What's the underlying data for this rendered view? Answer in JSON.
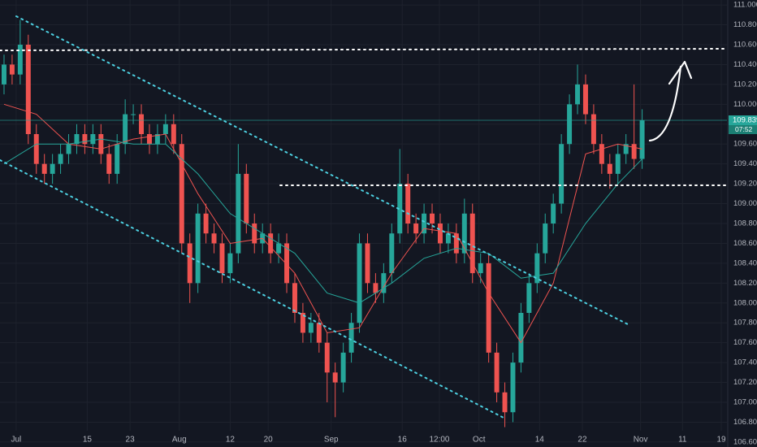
{
  "chart_data": {
    "type": "candlestick",
    "x": [
      0,
      1,
      2,
      3,
      4,
      5,
      6,
      7,
      8,
      9,
      10,
      11,
      12,
      13,
      14,
      15,
      16,
      17,
      18,
      19,
      20,
      21,
      22,
      23,
      24,
      25,
      26,
      27,
      28,
      29,
      30,
      31,
      32,
      33,
      34,
      35,
      36,
      37,
      38,
      39,
      40,
      41,
      42,
      43,
      44,
      45,
      46,
      47,
      48,
      49,
      50,
      51,
      52,
      53,
      54,
      55,
      56,
      57,
      58,
      59,
      60,
      61,
      62,
      63,
      64,
      65,
      66,
      67,
      68,
      69,
      70,
      71,
      72,
      73,
      74,
      75,
      76,
      77,
      78,
      79
    ],
    "open": [
      110.2,
      110.4,
      110.3,
      110.6,
      109.7,
      109.4,
      109.3,
      109.4,
      109.5,
      109.6,
      109.7,
      109.6,
      109.7,
      109.5,
      109.3,
      109.6,
      109.9,
      109.9,
      109.7,
      109.6,
      109.7,
      109.8,
      109.6,
      108.6,
      108.2,
      108.9,
      108.7,
      108.6,
      108.3,
      108.5,
      109.3,
      108.8,
      108.6,
      108.7,
      108.5,
      108.6,
      108.2,
      107.9,
      107.7,
      107.8,
      107.6,
      107.3,
      107.2,
      107.5,
      107.8,
      108.6,
      108.2,
      108.1,
      108.3,
      108.7,
      109.2,
      108.8,
      108.7,
      108.9,
      108.8,
      108.6,
      108.7,
      108.5,
      108.9,
      108.3,
      108.4,
      107.5,
      107.1,
      106.9,
      107.4,
      107.9,
      108.2,
      108.5,
      108.8,
      109.0,
      109.6,
      110.0,
      110.2,
      109.9,
      109.6,
      109.4,
      109.3,
      109.5,
      109.6,
      109.45
    ],
    "high": [
      110.5,
      110.5,
      110.85,
      110.7,
      109.8,
      109.5,
      109.5,
      109.6,
      109.7,
      109.8,
      109.8,
      109.8,
      109.8,
      109.6,
      109.7,
      110.05,
      110.0,
      110.0,
      109.8,
      109.8,
      109.9,
      109.9,
      109.7,
      108.7,
      109.0,
      109.0,
      108.8,
      108.7,
      108.6,
      109.6,
      109.4,
      108.9,
      108.8,
      108.8,
      108.7,
      108.7,
      108.3,
      108.0,
      107.9,
      107.9,
      107.7,
      107.4,
      107.6,
      107.9,
      108.7,
      108.7,
      108.3,
      108.4,
      108.8,
      109.55,
      109.3,
      108.9,
      109.0,
      109.0,
      108.9,
      108.8,
      108.8,
      109.05,
      109.0,
      108.5,
      108.5,
      107.6,
      107.2,
      107.5,
      108.0,
      108.3,
      108.6,
      108.9,
      109.1,
      109.7,
      110.1,
      110.4,
      110.3,
      110.0,
      109.7,
      109.5,
      109.6,
      109.7,
      110.2,
      109.95
    ],
    "low": [
      110.1,
      110.2,
      110.2,
      109.6,
      109.3,
      109.2,
      109.2,
      109.3,
      109.4,
      109.5,
      109.5,
      109.5,
      109.4,
      109.2,
      109.2,
      109.5,
      109.8,
      109.6,
      109.5,
      109.5,
      109.6,
      109.5,
      108.5,
      108.0,
      108.1,
      108.6,
      108.5,
      108.2,
      108.2,
      108.4,
      108.7,
      108.5,
      108.5,
      108.4,
      108.4,
      108.1,
      107.8,
      107.6,
      107.6,
      107.5,
      107.0,
      106.85,
      107.1,
      107.4,
      107.7,
      108.1,
      108.0,
      108.0,
      108.2,
      108.6,
      108.7,
      108.6,
      108.6,
      108.7,
      108.5,
      108.5,
      108.4,
      108.4,
      108.2,
      108.2,
      107.4,
      107.0,
      106.75,
      106.8,
      107.3,
      107.8,
      108.1,
      108.4,
      108.7,
      108.9,
      109.5,
      109.9,
      109.8,
      109.5,
      109.3,
      109.15,
      109.2,
      109.4,
      109.35,
      109.35
    ],
    "close": [
      110.4,
      110.3,
      110.6,
      109.7,
      109.4,
      109.3,
      109.4,
      109.5,
      109.6,
      109.7,
      109.6,
      109.7,
      109.5,
      109.3,
      109.6,
      109.9,
      109.9,
      109.7,
      109.6,
      109.7,
      109.8,
      109.6,
      108.6,
      108.2,
      108.9,
      108.7,
      108.6,
      108.3,
      108.5,
      109.3,
      108.8,
      108.6,
      108.7,
      108.5,
      108.6,
      108.2,
      107.9,
      107.7,
      107.8,
      107.6,
      107.3,
      107.2,
      107.5,
      107.8,
      108.6,
      108.2,
      108.1,
      108.3,
      108.7,
      109.2,
      108.8,
      108.7,
      108.9,
      108.8,
      108.6,
      108.7,
      108.5,
      108.9,
      108.3,
      108.4,
      107.5,
      107.1,
      106.9,
      107.4,
      107.9,
      108.2,
      108.5,
      108.8,
      109.0,
      109.6,
      110.0,
      110.2,
      109.9,
      109.6,
      109.4,
      109.3,
      109.5,
      109.6,
      109.45,
      109.839
    ],
    "up_color": "#26a69a",
    "down_color": "#ef5350",
    "averages": [
      {
        "color": "#ef5350",
        "x": [
          0,
          4,
          8,
          12,
          16,
          20,
          24,
          28,
          32,
          36,
          40,
          44,
          48,
          52,
          56,
          60,
          64,
          68,
          72,
          76,
          79
        ],
        "values": [
          110.0,
          109.9,
          109.6,
          109.55,
          109.65,
          109.7,
          109.1,
          108.6,
          108.65,
          108.3,
          107.7,
          107.75,
          108.3,
          108.75,
          108.7,
          108.1,
          107.6,
          108.2,
          109.5,
          109.6,
          109.55
        ]
      },
      {
        "color": "#26a69a",
        "x": [
          0,
          4,
          8,
          12,
          16,
          20,
          24,
          28,
          32,
          36,
          40,
          44,
          48,
          52,
          56,
          60,
          64,
          68,
          72,
          76,
          79
        ],
        "values": [
          109.4,
          109.6,
          109.6,
          109.65,
          109.6,
          109.6,
          109.3,
          108.9,
          108.7,
          108.5,
          108.1,
          108.0,
          108.2,
          108.45,
          108.55,
          108.5,
          108.25,
          108.3,
          108.8,
          109.2,
          109.45
        ]
      }
    ],
    "last_price": {
      "value": 109.839,
      "label": "109.839"
    },
    "countdown": "07:52",
    "xlim": [
      -0.5,
      89.5
    ],
    "xticks": [
      {
        "value": 1.5,
        "label": "Jul"
      },
      {
        "value": 10.3,
        "label": "15"
      },
      {
        "value": 15.6,
        "label": "23"
      },
      {
        "value": 21.7,
        "label": "Aug"
      },
      {
        "value": 28,
        "label": "12"
      },
      {
        "value": 32.7,
        "label": "20"
      },
      {
        "value": 40.5,
        "label": "Sep"
      },
      {
        "value": 49.3,
        "label": "16"
      },
      {
        "value": 53.9,
        "label": "12:00"
      },
      {
        "value": 58.8,
        "label": "Oct"
      },
      {
        "value": 66.3,
        "label": "14"
      },
      {
        "value": 71.6,
        "label": "22"
      },
      {
        "value": 78.8,
        "label": "Nov"
      },
      {
        "value": 84,
        "label": "11"
      },
      {
        "value": 88.8,
        "label": "19"
      }
    ],
    "ylim": [
      106.55,
      111.05
    ],
    "yticks": [
      {
        "value": 111,
        "label": "111.000"
      },
      {
        "value": 110.8,
        "label": "110.800"
      },
      {
        "value": 110.6,
        "label": "110.600"
      },
      {
        "value": 110.4,
        "label": "110.400"
      },
      {
        "value": 110.2,
        "label": "110.200"
      },
      {
        "value": 110,
        "label": "110.000"
      },
      {
        "value": 109.8,
        "label": "109.800"
      },
      {
        "value": 109.6,
        "label": "109.600"
      },
      {
        "value": 109.4,
        "label": "109.400"
      },
      {
        "value": 109.2,
        "label": "109.200"
      },
      {
        "value": 109,
        "label": "109.000"
      },
      {
        "value": 108.8,
        "label": "108.800"
      },
      {
        "value": 108.6,
        "label": "108.600"
      },
      {
        "value": 108.4,
        "label": "108.400"
      },
      {
        "value": 108.2,
        "label": "108.200"
      },
      {
        "value": 108,
        "label": "108.000"
      },
      {
        "value": 107.8,
        "label": "107.800"
      },
      {
        "value": 107.6,
        "label": "107.600"
      },
      {
        "value": 107.4,
        "label": "107.400"
      },
      {
        "value": 107.2,
        "label": "107.200"
      },
      {
        "value": 107,
        "label": "107.000"
      },
      {
        "value": 106.8,
        "label": "106.800"
      },
      {
        "value": 106.6,
        "label": "106.600"
      }
    ],
    "grid": true
  }
}
